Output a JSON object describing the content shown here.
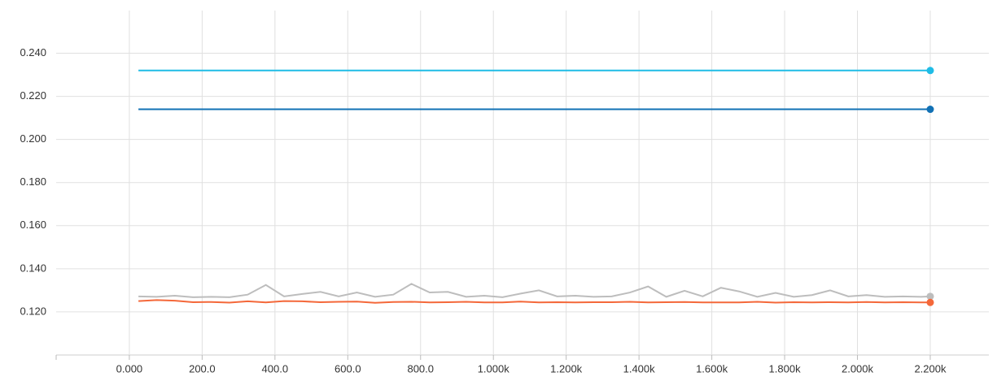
{
  "chart_data": {
    "type": "line",
    "xlim": [
      -201,
      2361
    ],
    "ylim": [
      0.1,
      0.2598
    ],
    "xticks": [
      {
        "value": 0,
        "label": "0.000"
      },
      {
        "value": 200,
        "label": "200.0"
      },
      {
        "value": 400,
        "label": "400.0"
      },
      {
        "value": 600,
        "label": "600.0"
      },
      {
        "value": 800,
        "label": "800.0"
      },
      {
        "value": 1000,
        "label": "1.000k"
      },
      {
        "value": 1200,
        "label": "1.200k"
      },
      {
        "value": 1400,
        "label": "1.400k"
      },
      {
        "value": 1600,
        "label": "1.600k"
      },
      {
        "value": 1800,
        "label": "1.800k"
      },
      {
        "value": 2000,
        "label": "2.000k"
      },
      {
        "value": 2200,
        "label": "2.200k"
      }
    ],
    "yticks": [
      {
        "value": 0.12,
        "label": "0.120"
      },
      {
        "value": 0.14,
        "label": "0.140"
      },
      {
        "value": 0.16,
        "label": "0.160"
      },
      {
        "value": 0.18,
        "label": "0.180"
      },
      {
        "value": 0.2,
        "label": "0.200"
      },
      {
        "value": 0.22,
        "label": "0.220"
      },
      {
        "value": 0.24,
        "label": "0.240"
      }
    ],
    "grid": true,
    "series": [
      {
        "color": "#1fbce6",
        "x": [
          25,
          2200
        ],
        "values": [
          0.232,
          0.232
        ]
      },
      {
        "color": "#1271b5",
        "x": [
          25,
          2200
        ],
        "values": [
          0.214,
          0.214
        ]
      },
      {
        "color": "#bdbdbd",
        "x": [
          25,
          75,
          125,
          175,
          225,
          275,
          325,
          375,
          425,
          475,
          525,
          575,
          625,
          675,
          725,
          775,
          825,
          875,
          925,
          975,
          1025,
          1075,
          1125,
          1175,
          1225,
          1275,
          1325,
          1375,
          1425,
          1475,
          1525,
          1575,
          1625,
          1675,
          1725,
          1775,
          1825,
          1875,
          1925,
          1975,
          2025,
          2075,
          2125,
          2175,
          2200
        ],
        "values": [
          0.1272,
          0.127,
          0.1275,
          0.1268,
          0.127,
          0.1268,
          0.128,
          0.1325,
          0.1272,
          0.1283,
          0.1293,
          0.1272,
          0.129,
          0.127,
          0.128,
          0.133,
          0.129,
          0.1293,
          0.127,
          0.1275,
          0.1268,
          0.1285,
          0.13,
          0.1272,
          0.1275,
          0.127,
          0.1272,
          0.129,
          0.1318,
          0.127,
          0.1298,
          0.1272,
          0.1312,
          0.1295,
          0.127,
          0.1288,
          0.127,
          0.1278,
          0.13,
          0.1272,
          0.1278,
          0.127,
          0.1272,
          0.127,
          0.1272
        ]
      },
      {
        "color": "#f4683a",
        "x": [
          25,
          75,
          125,
          175,
          225,
          275,
          325,
          375,
          425,
          475,
          525,
          575,
          625,
          675,
          725,
          775,
          825,
          875,
          925,
          975,
          1025,
          1075,
          1125,
          1175,
          1225,
          1275,
          1325,
          1375,
          1425,
          1475,
          1525,
          1575,
          1625,
          1675,
          1725,
          1775,
          1825,
          1875,
          1925,
          1975,
          2025,
          2075,
          2125,
          2175,
          2200
        ],
        "values": [
          0.125,
          0.1255,
          0.1252,
          0.1245,
          0.1246,
          0.1243,
          0.1249,
          0.1244,
          0.125,
          0.1249,
          0.1245,
          0.1247,
          0.1248,
          0.1242,
          0.1246,
          0.1247,
          0.1244,
          0.1245,
          0.1247,
          0.1244,
          0.1244,
          0.1248,
          0.1244,
          0.1245,
          0.1244,
          0.1245,
          0.1245,
          0.1247,
          0.1244,
          0.1245,
          0.1246,
          0.1244,
          0.1244,
          0.1244,
          0.1247,
          0.1243,
          0.1245,
          0.1244,
          0.1245,
          0.1244,
          0.1246,
          0.1244,
          0.1245,
          0.1244,
          0.1244
        ]
      }
    ]
  }
}
